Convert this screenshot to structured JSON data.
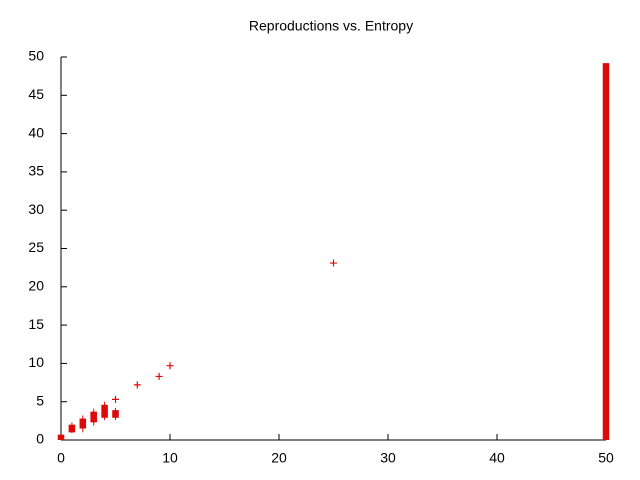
{
  "chart_data": {
    "type": "boxplot",
    "title": "Reproductions vs. Entropy",
    "color": "#dd0a0a",
    "boxes": {
      "x": [
        0,
        1,
        2,
        3,
        4,
        5,
        50
      ],
      "min": [
        0,
        0.9,
        1.0,
        1.9,
        2.6,
        2.6,
        0
      ],
      "q1": [
        0,
        1.0,
        1.5,
        2.3,
        2.9,
        2.9,
        0
      ],
      "q3": [
        0.7,
        2.0,
        2.8,
        3.7,
        4.6,
        3.9,
        49.2
      ],
      "max": [
        0.7,
        2.3,
        3.2,
        4.1,
        5.0,
        4.2,
        49.2
      ]
    },
    "outliers": {
      "x": [
        5,
        7,
        9,
        10,
        25
      ],
      "y": [
        5.3,
        7.2,
        8.3,
        9.7,
        23.1
      ]
    },
    "xlim": [
      0,
      50
    ],
    "ylim": [
      0,
      50
    ],
    "xticks": [
      0,
      10,
      20,
      30,
      40,
      50
    ],
    "yticks": [
      0,
      5,
      10,
      15,
      20,
      25,
      30,
      35,
      40,
      45,
      50
    ]
  }
}
